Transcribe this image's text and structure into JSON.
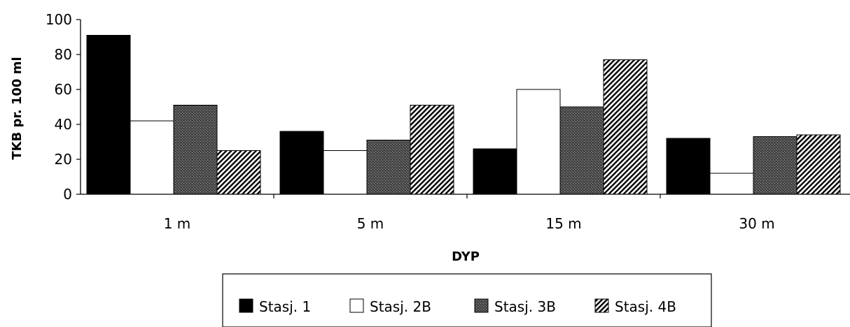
{
  "chart_data": {
    "type": "bar",
    "title": "",
    "xlabel": "DYP",
    "ylabel": "TKB pr. 100 ml",
    "categories": [
      "1 m",
      "5 m",
      "15 m",
      "30 m"
    ],
    "ylim": [
      0,
      100
    ],
    "yticks": [
      0,
      20,
      40,
      60,
      80,
      100
    ],
    "series": [
      {
        "name": "Stasj. 1",
        "values": [
          91,
          36,
          26,
          32
        ],
        "fill": "solid-black"
      },
      {
        "name": "Stasj. 2B",
        "values": [
          42,
          25,
          60,
          12
        ],
        "fill": "white"
      },
      {
        "name": "Stasj. 3B",
        "values": [
          51,
          31,
          50,
          33
        ],
        "fill": "dark-stipple"
      },
      {
        "name": "Stasj. 4B",
        "values": [
          25,
          51,
          77,
          34
        ],
        "fill": "diagonal-hatch"
      }
    ],
    "legend_position": "bottom-center",
    "grid": false
  },
  "colors": {
    "black": "#000000",
    "white": "#ffffff",
    "stipple_dark": "#4a4a4a",
    "stipple_light": "#8a8a8a"
  }
}
